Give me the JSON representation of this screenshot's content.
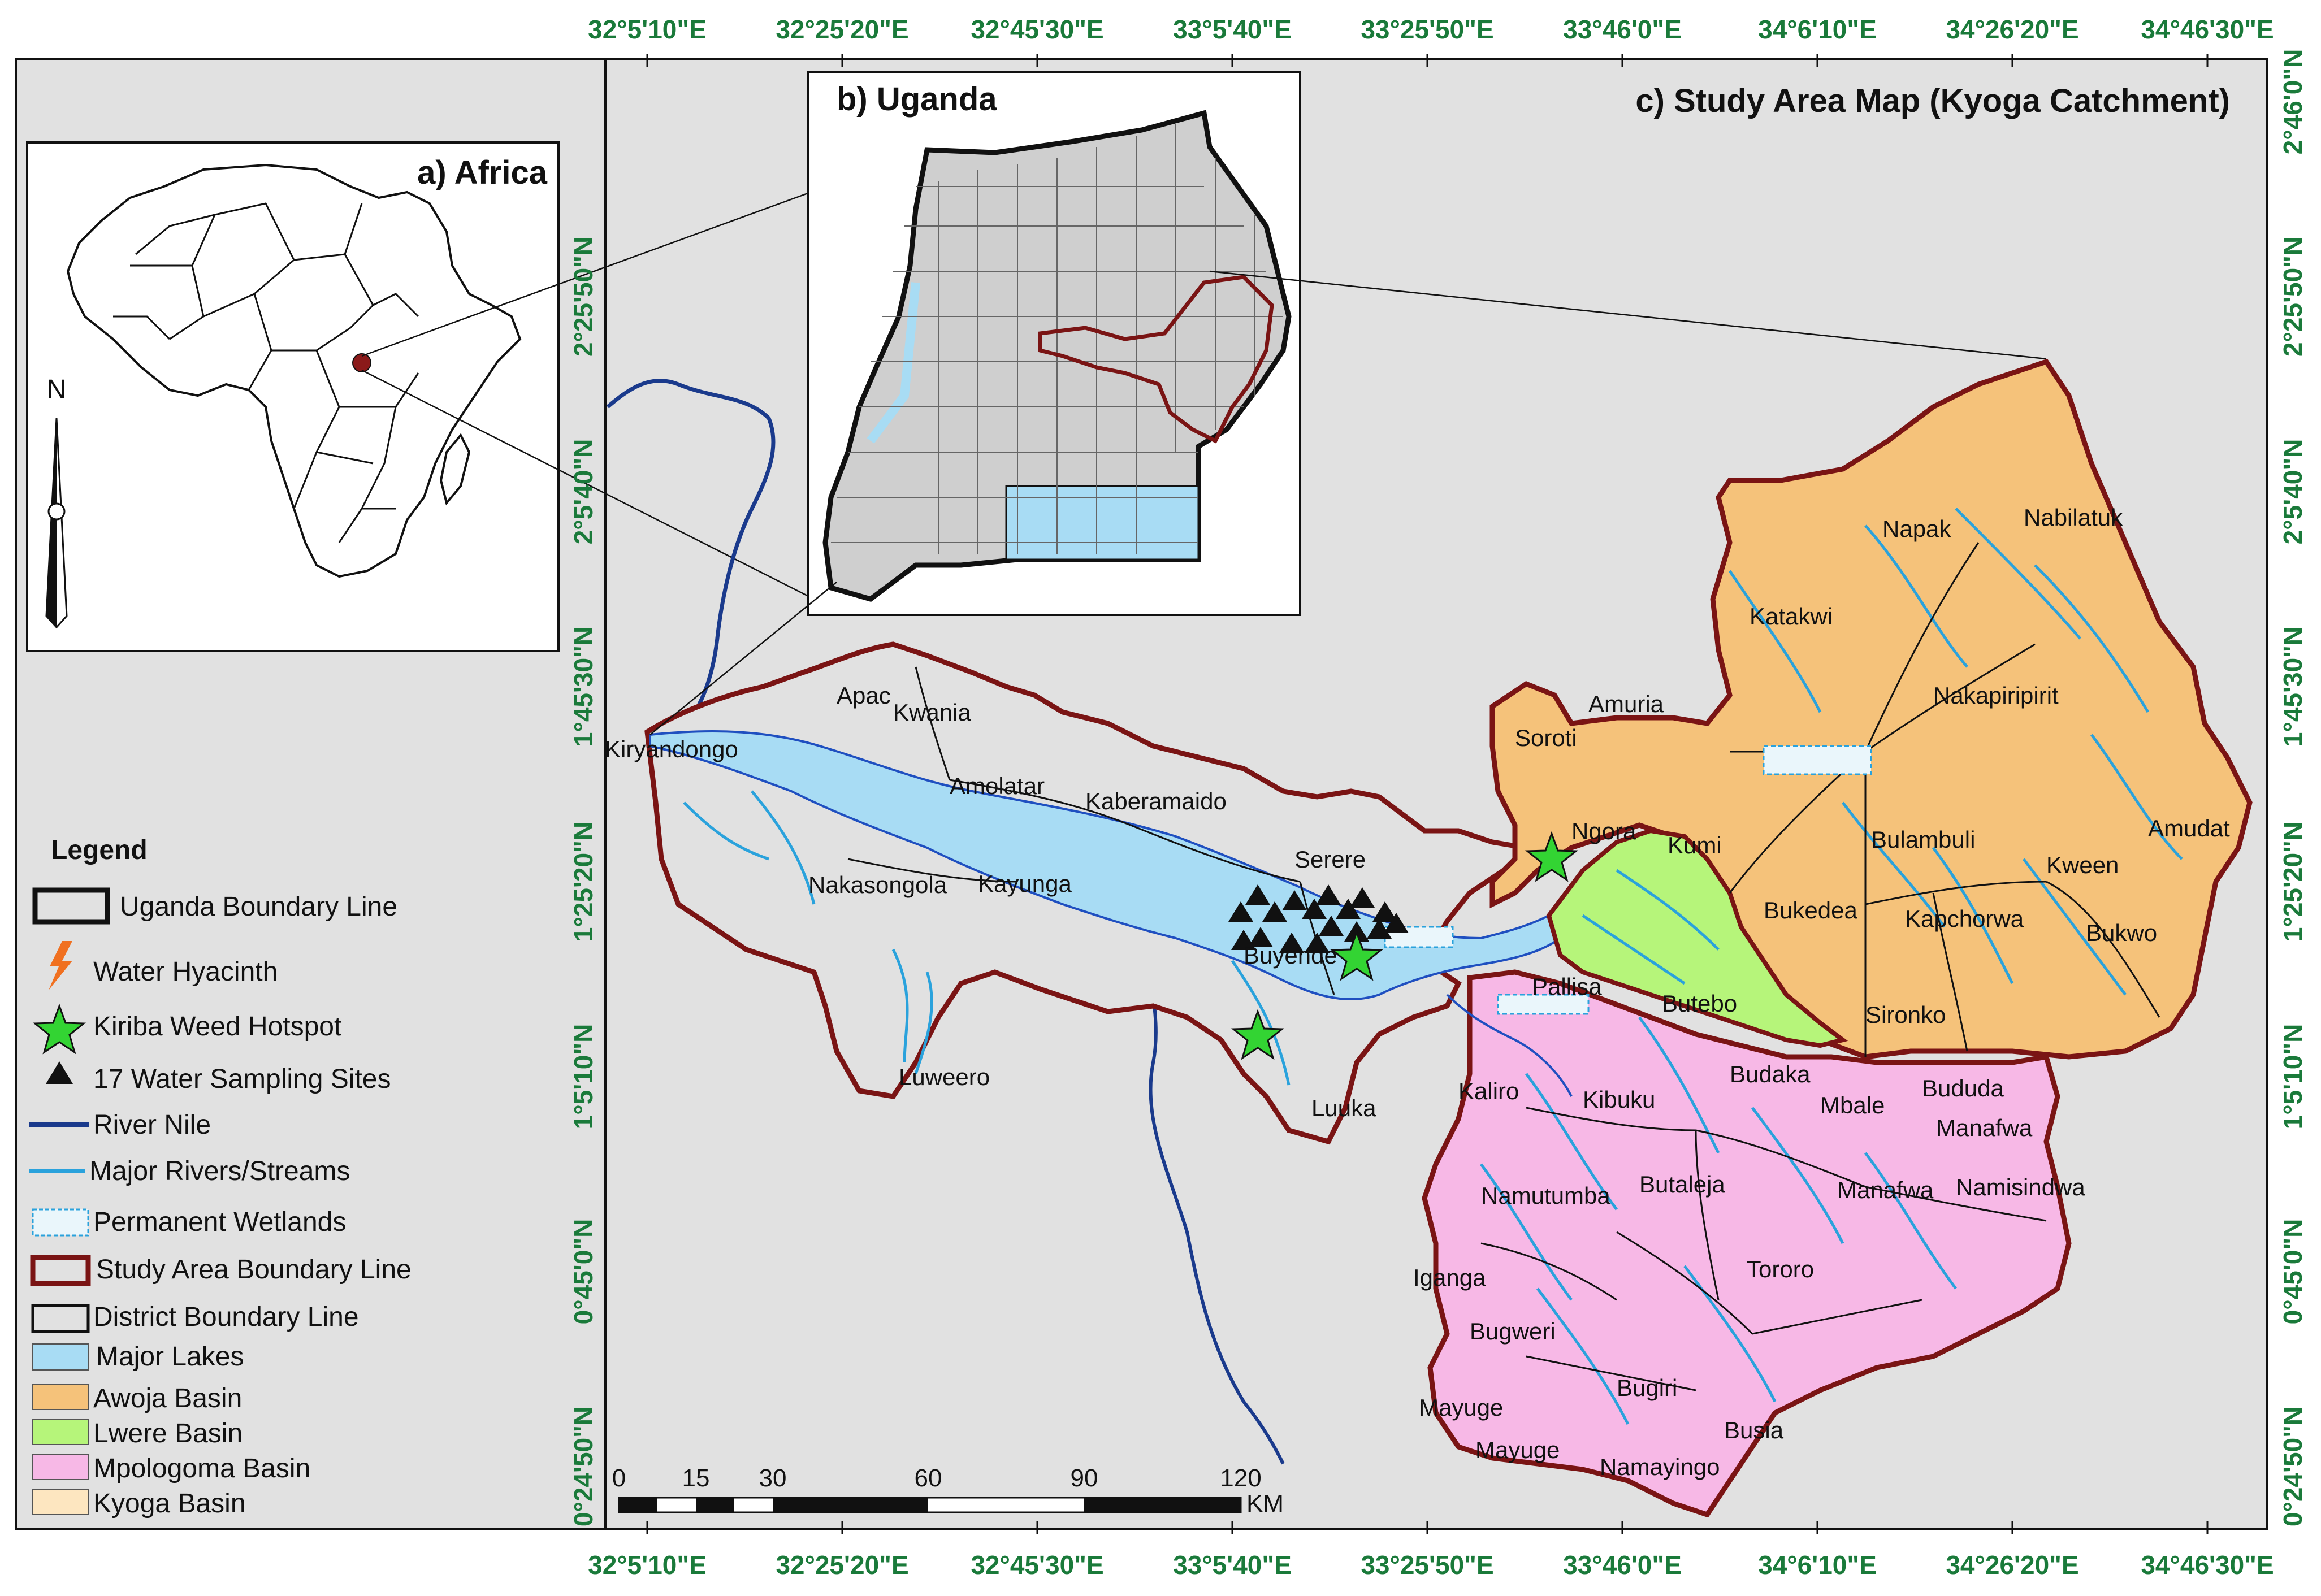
{
  "titles": {
    "africa": "a) Africa",
    "uganda": "b) Uganda",
    "study": "c) Study Area Map (Kyoga Catchment)"
  },
  "north_label": "N",
  "legend": {
    "title": "Legend",
    "items": [
      {
        "label": "Uganda Boundary Line",
        "symbol": "box-thick-black"
      },
      {
        "label": "Water Hyacinth",
        "symbol": "lightning-icon"
      },
      {
        "label": "Kiriba Weed Hotspot",
        "symbol": "star-icon"
      },
      {
        "label": "17 Water Sampling Sites",
        "symbol": "triangle-icon"
      },
      {
        "label": "River Nile",
        "symbol": "line-navy"
      },
      {
        "label": "Major Rivers/Streams",
        "symbol": "line-blue"
      },
      {
        "label": "Permanent Wetlands",
        "symbol": "wetland-icon"
      },
      {
        "label": "Study Area Boundary Line",
        "symbol": "box-maroon"
      },
      {
        "label": "District Boundary Line",
        "symbol": "box-thin-black"
      },
      {
        "label": "Major Lakes",
        "symbol": "fill-lakes"
      },
      {
        "label": "Awoja Basin",
        "symbol": "fill-awoja"
      },
      {
        "label": "Lwere Basin",
        "symbol": "fill-lwere"
      },
      {
        "label": "Mpologoma Basin",
        "symbol": "fill-mpologoma"
      },
      {
        "label": "Kyoga Basin",
        "symbol": "fill-kyoga"
      }
    ]
  },
  "coords": {
    "top": [
      "32°5'10\"E",
      "32°25'20\"E",
      "32°45'30\"E",
      "33°5'40\"E",
      "33°25'50\"E",
      "33°46'0\"E",
      "34°6'10\"E",
      "34°26'20\"E",
      "34°46'30\"E"
    ],
    "bottom": [
      "32°5'10\"E",
      "32°25'20\"E",
      "32°45'30\"E",
      "33°5'40\"E",
      "33°25'50\"E",
      "33°46'0\"E",
      "34°6'10\"E",
      "34°26'20\"E",
      "34°46'30\"E"
    ],
    "left": [
      "2°25'50\"N",
      "2°5'40\"N",
      "1°45'30\"N",
      "1°25'20\"N",
      "1°5'10\"N",
      "0°45'0\"N",
      "0°24'50\"N"
    ],
    "right": [
      "2°46'0\"N",
      "2°25'50\"N",
      "2°5'40\"N",
      "1°45'30\"N",
      "1°25'20\"N",
      "1°5'10\"N",
      "0°45'0\"N",
      "0°24'50\"N"
    ]
  },
  "scale_bar": {
    "ticks": [
      "0",
      "15",
      "30",
      "60",
      "90",
      "120"
    ],
    "unit": "KM"
  },
  "districts": [
    "Apac",
    "Kwania",
    "Kiryandongo",
    "Amolatar",
    "Kaberamaido",
    "Nakasongola",
    "Kayunga",
    "Serere",
    "Buyende",
    "Luweero",
    "Luuka",
    "Soroti",
    "Amuria",
    "Ngora",
    "Kumi",
    "Katakwi",
    "Napak",
    "Nabilatuk",
    "Nakapiripirit",
    "Amudat",
    "Bulambuli",
    "Kween",
    "Bukedea",
    "Kapchorwa",
    "Bukwo",
    "Pallisa",
    "Butebo",
    "Sironko",
    "Budaka",
    "Kaliro",
    "Kibuku",
    "Mbale",
    "Bududa",
    "Manafwa",
    "Namutumba",
    "Butaleja",
    "Manafwa",
    "Namisindwa",
    "Tororo",
    "Iganga",
    "Bugweri",
    "Bugiri",
    "Mayuge",
    "Mayuge",
    "Busia",
    "Namayingo"
  ],
  "colors": {
    "awoja": "#f5c27a",
    "lwere": "#b6f57a",
    "mpologoma": "#f7b8e6",
    "kyoga": "#fde6c0",
    "lakes": "#a8dcf4",
    "study_boundary": "#7a1414",
    "river_nile": "#1a3a8c",
    "streams": "#2aa2dc",
    "coord_text": "#1a7a3a",
    "map_bg": "#e1e1e1"
  }
}
